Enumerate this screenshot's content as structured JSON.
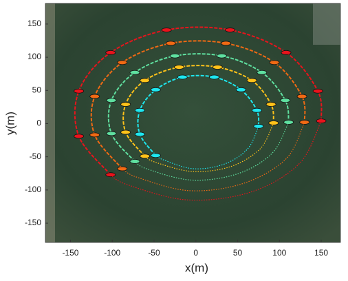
{
  "chart_data": {
    "type": "line",
    "xlabel": "x(m)",
    "ylabel": "y(m)",
    "xlim": [
      -180,
      173
    ],
    "ylim": [
      -179,
      181
    ],
    "xticks": [
      -150,
      -100,
      -50,
      0,
      50,
      100,
      150
    ],
    "yticks": [
      -150,
      -100,
      -50,
      0,
      50,
      100,
      150
    ],
    "series": [
      {
        "color": "#e8141c",
        "style": "solid",
        "x": [
          -102,
          -140,
          -140,
          -102,
          -35,
          41,
          108,
          146,
          150
        ],
        "y": [
          -77,
          -19,
          49,
          107,
          141,
          141,
          107,
          49,
          4
        ]
      },
      {
        "color": "#e8141c",
        "style": "dotted",
        "x": [
          150,
          124,
          66,
          -10,
          -82,
          -102
        ],
        "y": [
          4,
          -60,
          -103,
          -115,
          -92,
          -77
        ]
      },
      {
        "color": "#f06a14",
        "style": "solid",
        "x": [
          -88,
          -121,
          -121,
          -88,
          -30,
          36,
          94,
          127,
          130
        ],
        "y": [
          -68,
          -17,
          41,
          92,
          121,
          121,
          92,
          41,
          2
        ]
      },
      {
        "color": "#f06a14",
        "style": "dotted",
        "x": [
          130,
          108,
          57,
          -8,
          -70,
          -88
        ],
        "y": [
          2,
          -53,
          -90,
          -101,
          -81,
          -68
        ]
      },
      {
        "color": "#5fe0a0",
        "style": "solid",
        "x": [
          -73,
          -101,
          -101,
          -73,
          -25,
          31,
          79,
          107,
          111
        ],
        "y": [
          -57,
          -15,
          35,
          77,
          102,
          102,
          77,
          35,
          2
        ]
      },
      {
        "color": "#5fe0a0",
        "style": "dotted",
        "x": [
          111,
          91,
          49,
          -6,
          -59,
          -73
        ],
        "y": [
          2,
          -45,
          -76,
          -85,
          -68,
          -57
        ]
      },
      {
        "color": "#ffc21a",
        "style": "solid",
        "x": [
          -61,
          -84,
          -84,
          -61,
          -20,
          26,
          67,
          90,
          93
        ],
        "y": [
          -49,
          -13,
          29,
          65,
          85,
          85,
          65,
          29,
          1
        ]
      },
      {
        "color": "#ffc21a",
        "style": "dotted",
        "x": [
          93,
          77,
          41,
          -5,
          -49,
          -61
        ],
        "y": [
          1,
          -38,
          -65,
          -72,
          -58,
          -49
        ]
      },
      {
        "color": "#1ee8f0",
        "style": "solid",
        "x": [
          -48,
          -67,
          -67,
          -48,
          -16,
          22,
          54,
          73,
          75
        ],
        "y": [
          -48,
          -16,
          20,
          51,
          70,
          70,
          51,
          20,
          -4
        ]
      },
      {
        "color": "#1ee8f0",
        "style": "dotted",
        "x": [
          75,
          62,
          34,
          -3,
          -38,
          -48
        ],
        "y": [
          -4,
          -38,
          -61,
          -68,
          -55,
          -48
        ]
      }
    ]
  }
}
